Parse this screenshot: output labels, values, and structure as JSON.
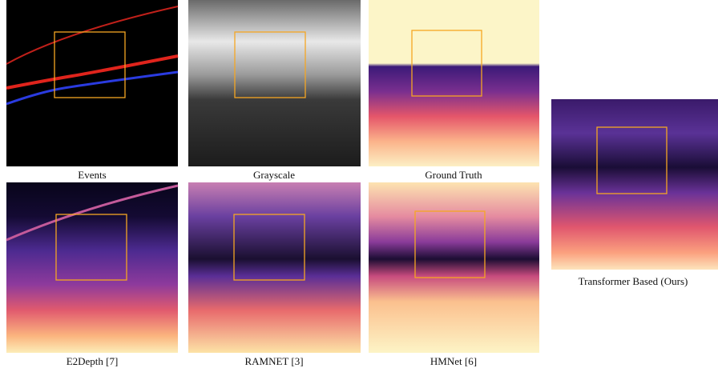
{
  "panels": [
    {
      "caption": "Events"
    },
    {
      "caption": "Grayscale"
    },
    {
      "caption": "Ground Truth"
    },
    {
      "caption": "E2Depth [7]"
    },
    {
      "caption": "RAMNET [3]"
    },
    {
      "caption": "HMNet [6]"
    },
    {
      "caption": "Transformer Based (Ours)"
    }
  ]
}
